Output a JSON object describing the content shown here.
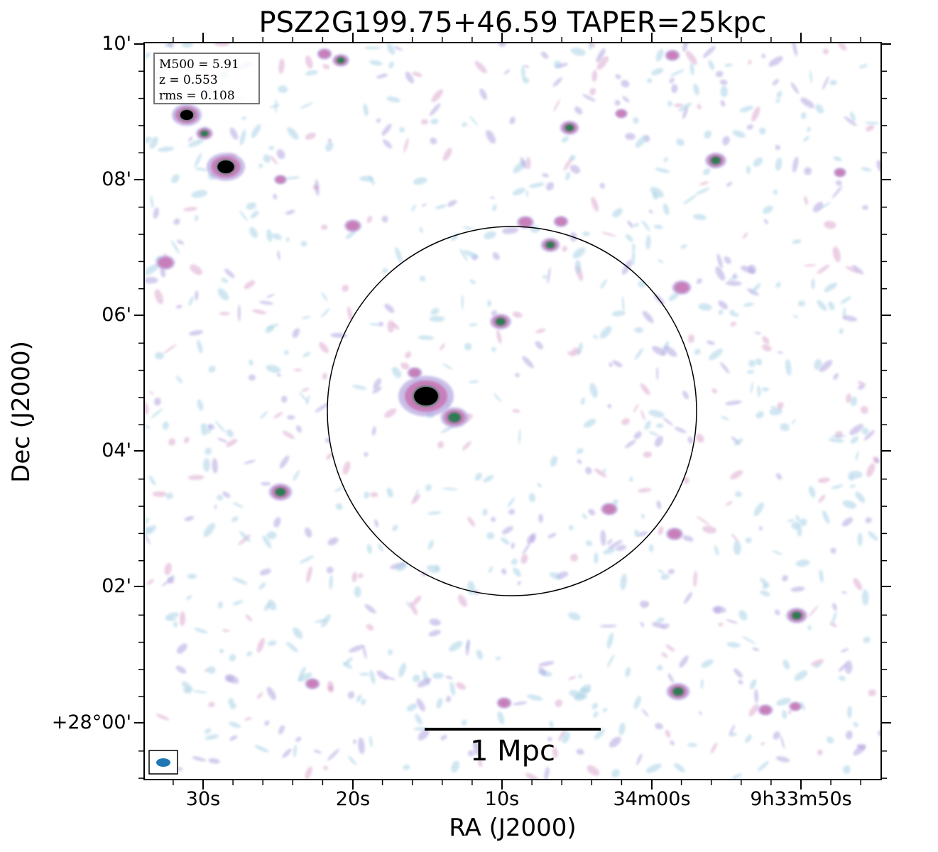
{
  "title": "PSZ2G199.75+46.59 TAPER=25kpc",
  "axes": {
    "xlabel": "RA (J2000)",
    "ylabel": "Dec (J2000)",
    "xticks": [
      "30s",
      "20s",
      "10s",
      "34m00s",
      "9h33m50s"
    ],
    "yticks": [
      "10'",
      "08'",
      "06'",
      "04'",
      "02'",
      "+28°00'"
    ]
  },
  "info": {
    "m500": "M500 = 5.91",
    "z": "z = 0.553",
    "rms": "rms = 0.108"
  },
  "scalebar": {
    "label": "1 Mpc"
  },
  "colors": {
    "background": "#ffffff",
    "noise_light": "#a9d2e6",
    "noise_mid": "#b3a4e0",
    "emission_pink": "#c878b4",
    "emission_green": "#2e7a54",
    "peak": "#000000",
    "beam": "#1f77b4"
  },
  "icons": {
    "beam": "beam-ellipse-icon"
  }
}
